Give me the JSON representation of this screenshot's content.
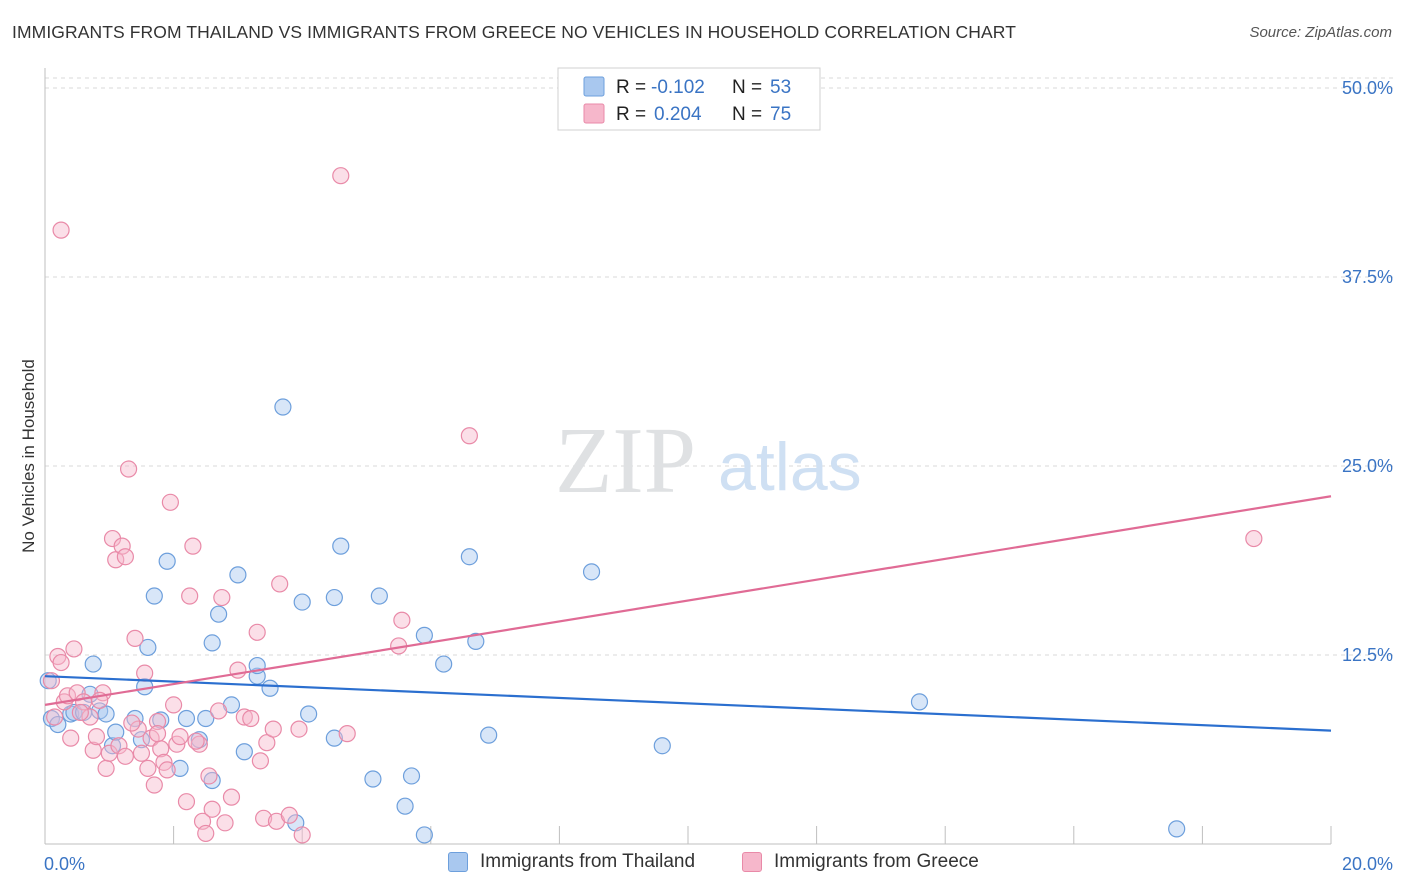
{
  "header": {
    "title": "IMMIGRANTS FROM THAILAND VS IMMIGRANTS FROM GREECE NO VEHICLES IN HOUSEHOLD CORRELATION CHART",
    "source": "Source: ZipAtlas.com"
  },
  "watermark": {
    "zip": "ZIP",
    "atlas": "atlas"
  },
  "colors": {
    "thailand_fill": "#a9c8ef",
    "thailand_stroke": "#6d9fdc",
    "thailand_line": "#2b6fcf",
    "greece_fill": "#f6b7cb",
    "greece_stroke": "#e98aa8",
    "greece_line": "#e06b95",
    "axis_label": "#3a74c4",
    "grid": "#d9d9d9"
  },
  "legend_top": {
    "rows": [
      {
        "r_label": "R = ",
        "r_value": "-0.102",
        "n_label": "N = ",
        "n_value": "53"
      },
      {
        "r_label": "R = ",
        "r_value": "0.204",
        "n_label": "N = ",
        "n_value": "75"
      }
    ]
  },
  "legend_bottom": {
    "thailand": "Immigrants from Thailand",
    "greece": "Immigrants from Greece"
  },
  "chart_data": {
    "type": "scatter",
    "title": "IMMIGRANTS FROM THAILAND VS IMMIGRANTS FROM GREECE NO VEHICLES IN HOUSEHOLD CORRELATION CHART",
    "xlabel": "",
    "ylabel": "No Vehicles in Household",
    "xlim": [
      0,
      20
    ],
    "ylim": [
      0,
      50
    ],
    "x_tick_labels": [
      {
        "value": 0,
        "label": "0.0%"
      },
      {
        "value": 20,
        "label": "20.0%"
      }
    ],
    "y_tick_labels": [
      {
        "value": 12.5,
        "label": "12.5%"
      },
      {
        "value": 25,
        "label": "25.0%"
      },
      {
        "value": 37.5,
        "label": "37.5%"
      },
      {
        "value": 50,
        "label": "50.0%"
      }
    ],
    "series": [
      {
        "name": "Immigrants from Thailand",
        "r": -0.102,
        "n": 53,
        "trend": [
          [
            0,
            11.1
          ],
          [
            20,
            7.5
          ]
        ],
        "points": [
          [
            0.05,
            10.8
          ],
          [
            0.1,
            8.3
          ],
          [
            0.2,
            7.9
          ],
          [
            0.4,
            8.6
          ],
          [
            0.45,
            8.7
          ],
          [
            0.6,
            8.7
          ],
          [
            0.7,
            9.9
          ],
          [
            0.75,
            11.9
          ],
          [
            0.85,
            8.8
          ],
          [
            0.95,
            8.6
          ],
          [
            1.05,
            6.5
          ],
          [
            1.1,
            7.4
          ],
          [
            1.4,
            8.3
          ],
          [
            1.5,
            6.9
          ],
          [
            1.55,
            10.4
          ],
          [
            1.6,
            13.0
          ],
          [
            1.7,
            16.4
          ],
          [
            1.8,
            8.2
          ],
          [
            1.9,
            18.7
          ],
          [
            2.1,
            5.0
          ],
          [
            2.2,
            8.3
          ],
          [
            2.5,
            8.3
          ],
          [
            2.4,
            6.9
          ],
          [
            2.6,
            4.2
          ],
          [
            2.6,
            13.3
          ],
          [
            2.7,
            15.2
          ],
          [
            2.9,
            9.2
          ],
          [
            3.0,
            17.8
          ],
          [
            3.1,
            6.1
          ],
          [
            3.3,
            11.1
          ],
          [
            3.3,
            11.8
          ],
          [
            3.5,
            10.3
          ],
          [
            3.7,
            28.9
          ],
          [
            4.0,
            16.0
          ],
          [
            3.9,
            1.4
          ],
          [
            4.1,
            8.6
          ],
          [
            4.5,
            16.3
          ],
          [
            4.5,
            7.0
          ],
          [
            4.6,
            19.7
          ],
          [
            5.1,
            4.3
          ],
          [
            5.2,
            16.4
          ],
          [
            5.6,
            2.5
          ],
          [
            5.7,
            4.5
          ],
          [
            5.9,
            13.8
          ],
          [
            5.9,
            0.6
          ],
          [
            6.2,
            11.9
          ],
          [
            6.6,
            19.0
          ],
          [
            6.7,
            13.4
          ],
          [
            6.9,
            7.2
          ],
          [
            8.5,
            18.0
          ],
          [
            9.6,
            6.5
          ],
          [
            13.6,
            9.4
          ],
          [
            17.6,
            1.0
          ]
        ]
      },
      {
        "name": "Immigrants from Greece",
        "r": 0.204,
        "n": 75,
        "trend": [
          [
            0,
            9.2
          ],
          [
            20,
            23.0
          ]
        ],
        "points": [
          [
            0.1,
            10.8
          ],
          [
            0.2,
            12.4
          ],
          [
            0.25,
            12.0
          ],
          [
            0.3,
            9.4
          ],
          [
            0.35,
            9.8
          ],
          [
            0.4,
            7.0
          ],
          [
            0.45,
            12.9
          ],
          [
            0.5,
            10.0
          ],
          [
            0.6,
            9.4
          ],
          [
            0.7,
            8.4
          ],
          [
            0.75,
            6.2
          ],
          [
            0.8,
            7.1
          ],
          [
            0.9,
            10.0
          ],
          [
            0.95,
            5.0
          ],
          [
            1.0,
            6.0
          ],
          [
            1.05,
            20.2
          ],
          [
            1.1,
            18.8
          ],
          [
            1.2,
            19.7
          ],
          [
            1.25,
            19.0
          ],
          [
            1.3,
            24.8
          ],
          [
            1.4,
            13.6
          ],
          [
            1.45,
            7.6
          ],
          [
            1.5,
            6.0
          ],
          [
            1.55,
            11.3
          ],
          [
            1.6,
            5.0
          ],
          [
            1.65,
            7.0
          ],
          [
            1.7,
            3.9
          ],
          [
            1.75,
            8.1
          ],
          [
            1.8,
            6.3
          ],
          [
            1.85,
            5.4
          ],
          [
            1.9,
            4.9
          ],
          [
            1.95,
            22.6
          ],
          [
            2.0,
            9.2
          ],
          [
            2.05,
            6.6
          ],
          [
            2.1,
            7.1
          ],
          [
            2.2,
            2.8
          ],
          [
            2.25,
            16.4
          ],
          [
            2.3,
            19.7
          ],
          [
            2.4,
            6.6
          ],
          [
            2.45,
            1.5
          ],
          [
            2.5,
            0.7
          ],
          [
            2.55,
            4.5
          ],
          [
            2.6,
            2.3
          ],
          [
            2.7,
            8.8
          ],
          [
            2.75,
            16.3
          ],
          [
            2.8,
            1.4
          ],
          [
            2.9,
            3.1
          ],
          [
            3.0,
            11.5
          ],
          [
            3.1,
            8.4
          ],
          [
            3.2,
            8.3
          ],
          [
            3.3,
            14.0
          ],
          [
            3.35,
            5.5
          ],
          [
            3.4,
            1.7
          ],
          [
            3.45,
            6.7
          ],
          [
            3.55,
            7.6
          ],
          [
            3.6,
            1.5
          ],
          [
            3.65,
            17.2
          ],
          [
            3.8,
            1.9
          ],
          [
            3.95,
            7.6
          ],
          [
            4.0,
            0.6
          ],
          [
            4.6,
            44.2
          ],
          [
            4.7,
            7.3
          ],
          [
            5.5,
            13.1
          ],
          [
            5.55,
            14.8
          ],
          [
            6.6,
            27.0
          ],
          [
            0.25,
            40.6
          ],
          [
            0.15,
            8.4
          ],
          [
            0.55,
            8.7
          ],
          [
            0.85,
            9.5
          ],
          [
            1.35,
            8.0
          ],
          [
            1.15,
            6.5
          ],
          [
            1.75,
            7.3
          ],
          [
            2.35,
            6.8
          ],
          [
            1.25,
            5.8
          ],
          [
            18.8,
            20.2
          ]
        ]
      }
    ]
  }
}
